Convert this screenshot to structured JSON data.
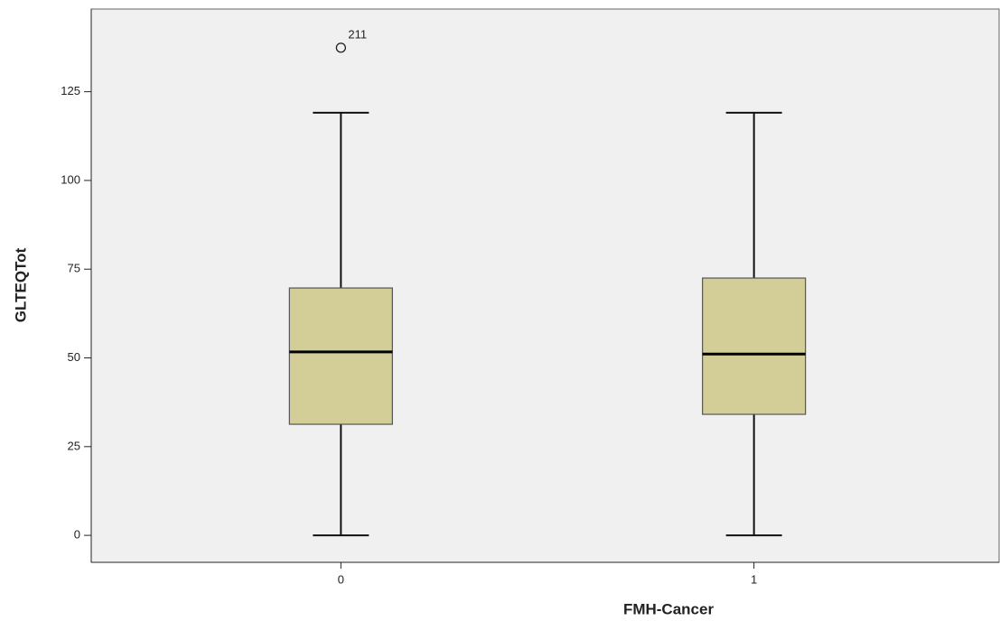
{
  "chart_data": {
    "type": "box",
    "x_label": "FMH-Cancer",
    "y_label": "GLTEQTot",
    "categories": [
      "0",
      "1"
    ],
    "boxes": [
      {
        "min": 0,
        "q1": 31.3,
        "median": 51.7,
        "q3": 69.7,
        "max": 119.1,
        "outliers": [
          {
            "value": 137.4,
            "case": "211"
          }
        ]
      },
      {
        "min": 0,
        "q1": 34.1,
        "median": 51.1,
        "q3": 72.5,
        "max": 119.1,
        "outliers": []
      }
    ],
    "color": "#d3ce98",
    "ylim": [
      -7.6,
      148.3
    ],
    "yticks": [
      0,
      25,
      50,
      75,
      100,
      125
    ]
  }
}
